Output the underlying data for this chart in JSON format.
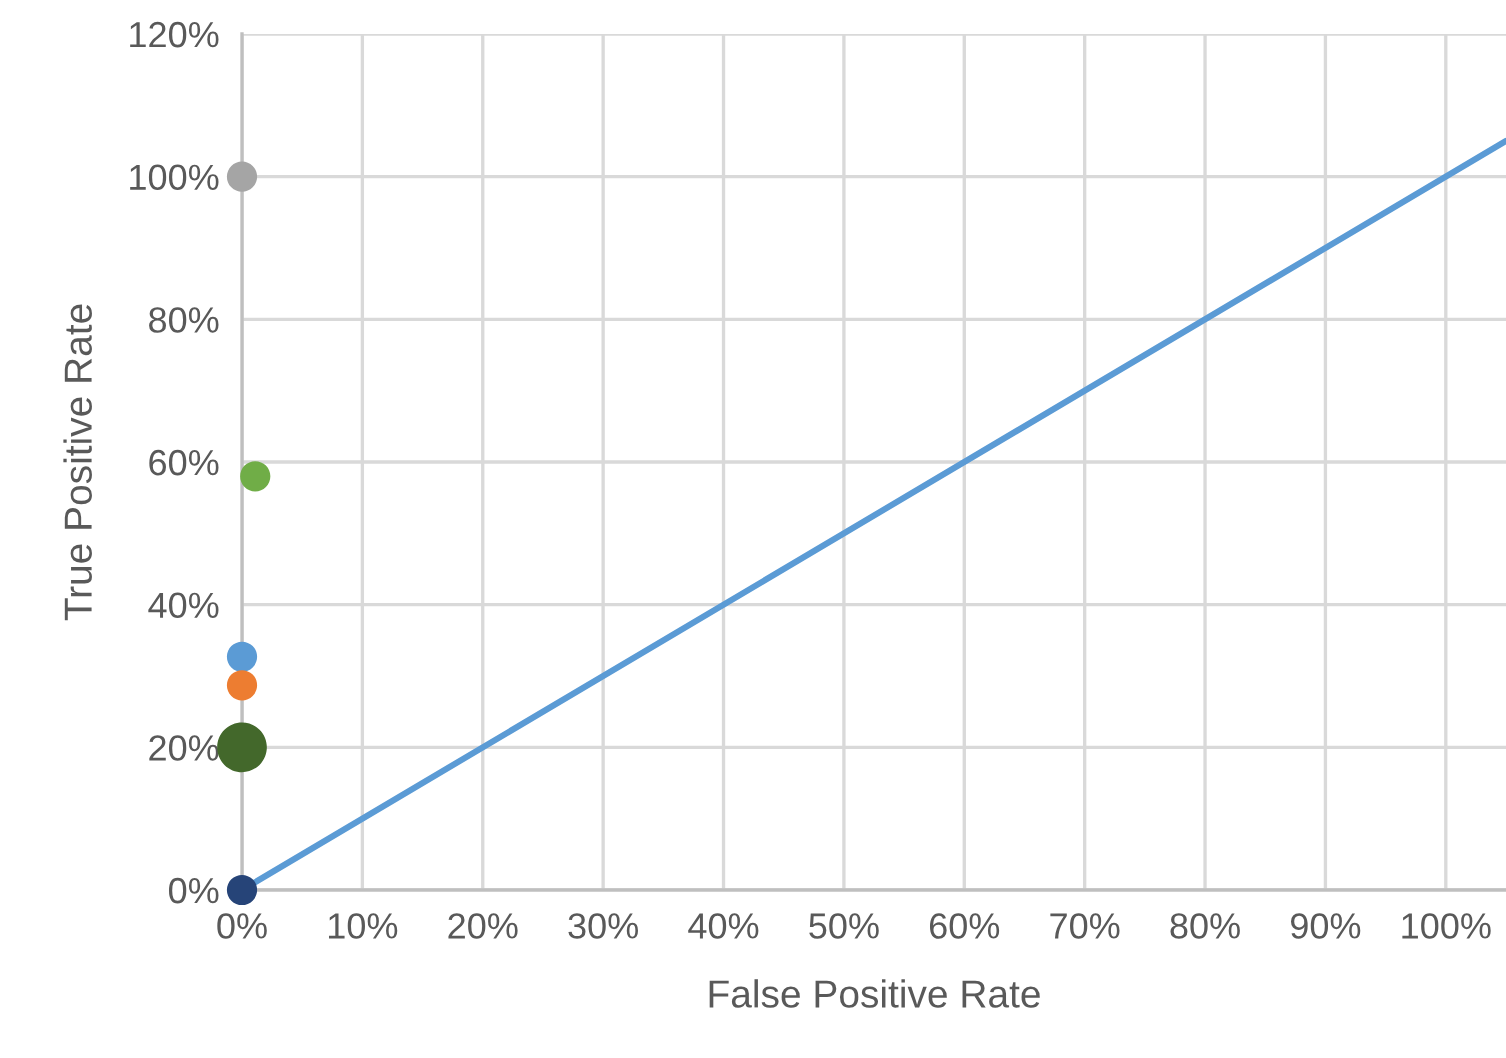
{
  "chart_data": {
    "type": "bubble",
    "xlabel": "False Positive Rate",
    "ylabel": "True Positive Rate",
    "series": [
      {
        "x": [
          0,
          0.011,
          0,
          0,
          0,
          0
        ],
        "values": [
          1.0,
          0.58,
          0.327,
          0.287,
          0.2,
          0
        ],
        "sizes": [
          0.37,
          0.37,
          0.37,
          0.37,
          1,
          0.37
        ],
        "colors": [
          "#a5a5a5",
          "#70ad47",
          "#5b9bd5",
          "#ed7d31",
          "#43682b",
          "#264478"
        ]
      },
      {
        "type": "line",
        "x": [
          0,
          1.05
        ],
        "values": [
          0,
          1.05
        ],
        "color": "#5b9bd5"
      }
    ],
    "xlim": [
      0,
      1.05
    ],
    "ylim": [
      0,
      1.2
    ],
    "xticks": [
      {
        "value": 0,
        "label": "0%"
      },
      {
        "value": 0.1,
        "label": "10%"
      },
      {
        "value": 0.2,
        "label": "20%"
      },
      {
        "value": 0.3,
        "label": "30%"
      },
      {
        "value": 0.4,
        "label": "40%"
      },
      {
        "value": 0.5,
        "label": "50%"
      },
      {
        "value": 0.6,
        "label": "60%"
      },
      {
        "value": 0.7,
        "label": "70%"
      },
      {
        "value": 0.8,
        "label": "80%"
      },
      {
        "value": 0.9,
        "label": "90%"
      },
      {
        "value": 1.0,
        "label": "100%"
      }
    ],
    "yticks": [
      {
        "value": 0,
        "label": "0%"
      },
      {
        "value": 0.2,
        "label": "20%"
      },
      {
        "value": 0.4,
        "label": "40%"
      },
      {
        "value": 0.6,
        "label": "60%"
      },
      {
        "value": 0.8,
        "label": "80%"
      },
      {
        "value": 1.0,
        "label": "100%"
      },
      {
        "value": 1.2,
        "label": "120%"
      }
    ],
    "grid": true,
    "legend": false
  }
}
